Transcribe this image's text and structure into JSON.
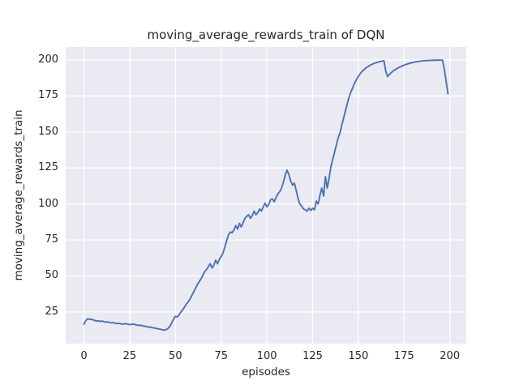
{
  "colors": {
    "line": "#4c72b0",
    "plot_background": "#eaeaf2",
    "gridline": "#ffffff",
    "text": "#262626",
    "figure_background": "#ffffff"
  },
  "chart_data": {
    "type": "line",
    "title": "moving_average_rewards_train of DQN",
    "xlabel": "episodes",
    "ylabel": "moving_average_rewards_train",
    "xlim": [
      -10,
      209
    ],
    "ylim": [
      3,
      209
    ],
    "xticks": [
      0,
      25,
      50,
      75,
      100,
      125,
      150,
      175,
      200
    ],
    "yticks": [
      25,
      50,
      75,
      100,
      125,
      150,
      175,
      200
    ],
    "grid": true,
    "legend_position": "none",
    "series": [
      {
        "name": "moving_average_rewards_train",
        "x_mode": "index",
        "values": [
          16.5,
          19.0,
          20.3,
          19.8,
          20.0,
          19.5,
          19.0,
          18.6,
          18.9,
          18.4,
          18.7,
          18.2,
          17.9,
          18.1,
          17.7,
          17.4,
          17.6,
          17.2,
          16.9,
          17.1,
          16.8,
          16.5,
          16.7,
          16.9,
          16.5,
          16.2,
          16.4,
          16.6,
          16.2,
          15.9,
          15.6,
          15.8,
          15.4,
          15.1,
          14.9,
          14.6,
          14.4,
          14.2,
          13.9,
          13.7,
          13.4,
          13.2,
          12.9,
          12.6,
          12.4,
          12.8,
          13.6,
          15.0,
          17.5,
          20.0,
          22.0,
          21.5,
          23.0,
          25.0,
          26.5,
          28.5,
          30.5,
          32.0,
          34.0,
          36.5,
          39.0,
          41.5,
          44.0,
          46.0,
          48.0,
          50.5,
          53.0,
          54.5,
          56.5,
          58.5,
          55.5,
          57.5,
          61.0,
          58.5,
          61.5,
          63.5,
          66.0,
          70.0,
          74.5,
          78.5,
          80.5,
          80.0,
          82.0,
          85.0,
          82.5,
          86.5,
          84.0,
          87.0,
          90.0,
          91.5,
          92.5,
          90.0,
          92.0,
          95.0,
          92.5,
          94.0,
          96.5,
          95.0,
          98.0,
          100.5,
          98.0,
          99.5,
          103.0,
          103.5,
          101.5,
          104.5,
          107.0,
          108.5,
          111.0,
          115.0,
          120.0,
          123.5,
          120.5,
          116.0,
          113.0,
          114.5,
          109.5,
          104.0,
          100.0,
          98.5,
          96.5,
          96.0,
          95.0,
          97.0,
          95.5,
          97.0,
          96.0,
          102.0,
          100.0,
          106.0,
          111.0,
          105.5,
          119.0,
          111.0,
          118.0,
          126.0,
          131.0,
          136.0,
          141.0,
          146.0,
          149.5,
          155.0,
          160.0,
          165.0,
          170.0,
          174.5,
          178.0,
          181.0,
          184.0,
          186.5,
          188.5,
          190.5,
          192.0,
          193.2,
          194.3,
          195.2,
          196.0,
          196.7,
          197.3,
          197.8,
          198.2,
          198.6,
          198.9,
          199.2,
          199.4,
          192.0,
          188.5,
          190.0,
          191.2,
          192.3,
          193.2,
          194.0,
          194.7,
          195.3,
          195.9,
          196.4,
          196.9,
          197.3,
          197.7,
          198.0,
          198.3,
          198.6,
          198.8,
          199.0,
          199.2,
          199.3,
          199.45,
          199.55,
          199.65,
          199.7,
          199.75,
          199.8,
          199.85,
          199.9,
          199.9,
          199.9,
          199.9,
          193.5,
          185.0,
          176.5
        ]
      }
    ]
  }
}
